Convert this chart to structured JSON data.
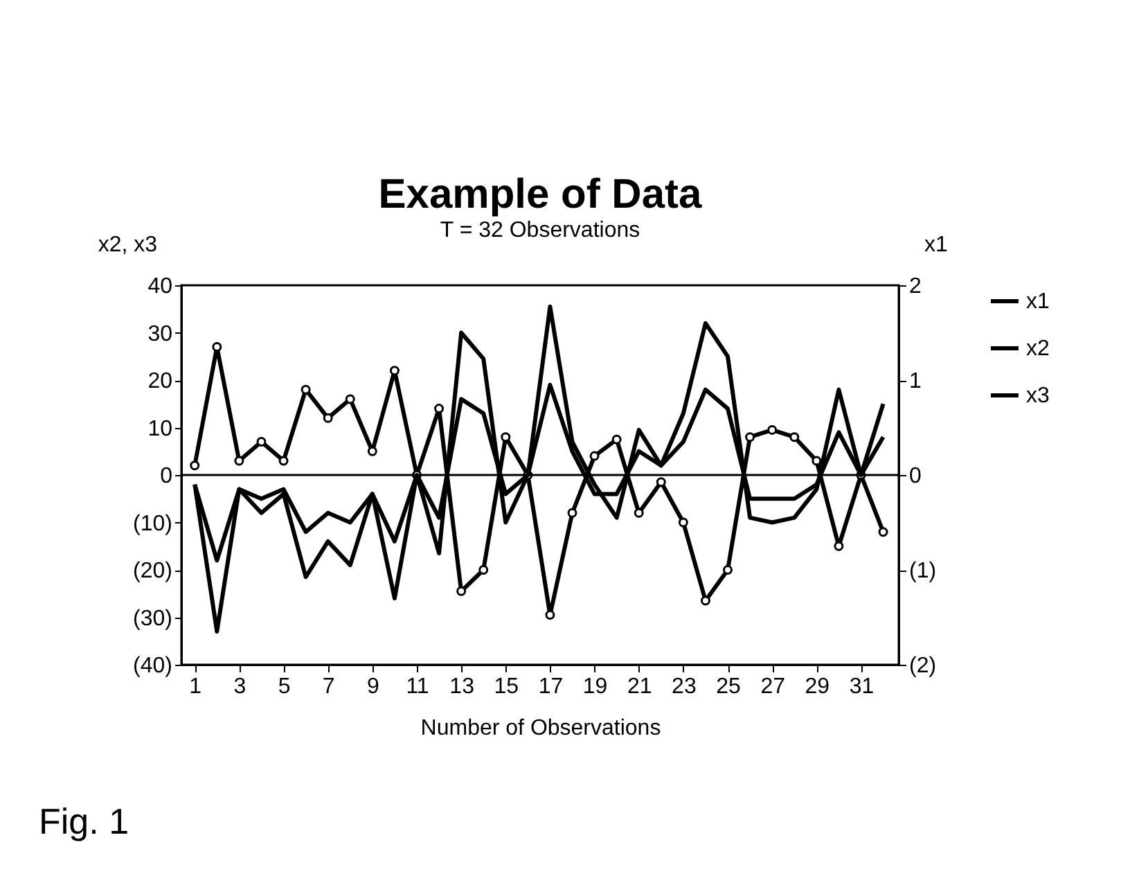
{
  "chart_data": {
    "type": "line",
    "title": "Example of Data",
    "subtitle": "T = 32 Observations",
    "xlabel": "Number of Observations",
    "ylabel": "x2, x3",
    "y2label": "x1",
    "x": [
      1,
      2,
      3,
      4,
      5,
      6,
      7,
      8,
      9,
      10,
      11,
      12,
      13,
      14,
      15,
      16,
      17,
      18,
      19,
      20,
      21,
      22,
      23,
      24,
      25,
      26,
      27,
      28,
      29,
      30,
      31,
      32
    ],
    "series": [
      {
        "name": "x1",
        "color": "#000000",
        "axis": "y2",
        "marker": "none",
        "values": [
          -0.1,
          -0.9,
          -0.15,
          -0.25,
          -0.15,
          -0.6,
          -0.4,
          -0.5,
          -0.2,
          -0.7,
          0,
          -0.45,
          0.8,
          0.65,
          -0.2,
          0,
          0.95,
          0.25,
          -0.2,
          -0.2,
          0.25,
          0.1,
          0.35,
          0.9,
          0.7,
          -0.25,
          -0.25,
          -0.25,
          -0.1,
          0.45,
          0,
          0.4
        ]
      },
      {
        "name": "x2",
        "color": "#000000",
        "marker": "none",
        "values": [
          -2,
          -33,
          -3,
          -8,
          -4,
          -21.5,
          -14,
          -19,
          -4,
          -26,
          0,
          -16.5,
          30,
          24.5,
          -10,
          0,
          35.5,
          7,
          -2,
          -9,
          9.5,
          2,
          13,
          32,
          25,
          -9,
          -10,
          -9,
          -3,
          18,
          0,
          15
        ]
      },
      {
        "name": "x3",
        "color": "#000000",
        "marker": "circle",
        "values": [
          2,
          27,
          3,
          7,
          3,
          18,
          12,
          16,
          5,
          22,
          0,
          14,
          -24.5,
          -20,
          8,
          0,
          -29.5,
          -8,
          4,
          7.5,
          -8,
          -1.5,
          -10,
          -26.5,
          -20,
          8,
          9.5,
          8,
          3,
          -15,
          0,
          -12
        ]
      }
    ],
    "xlim": [
      0.4,
      32.7
    ],
    "xticks": [
      1,
      3,
      5,
      7,
      9,
      11,
      13,
      15,
      17,
      19,
      21,
      23,
      25,
      27,
      29,
      31
    ],
    "ylim": [
      -40,
      40
    ],
    "yticks": [
      {
        "value": -40,
        "label": "(40)"
      },
      {
        "value": -30,
        "label": "(30)"
      },
      {
        "value": -20,
        "label": "(20)"
      },
      {
        "value": -10,
        "label": "(10)"
      },
      0,
      10,
      20,
      30,
      40
    ],
    "y2lim": [
      -2,
      2
    ],
    "y2ticks": [
      {
        "value": -2,
        "label": "(2)"
      },
      {
        "value": -1,
        "label": "(1)"
      },
      0,
      1,
      2
    ],
    "ref_lines": [
      {
        "axis": "y",
        "value": 0,
        "color": "#000000"
      }
    ],
    "legend": "right",
    "grid": false,
    "annotations": [
      "Fig. 1"
    ]
  }
}
